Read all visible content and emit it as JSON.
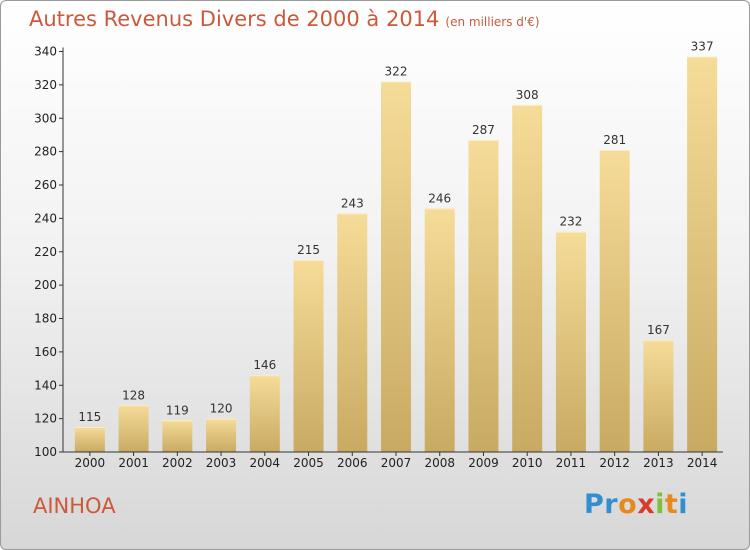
{
  "header": {
    "title": "Autres Revenus Divers de 2000 à 2014",
    "subtitle": "(en milliers d'€)"
  },
  "footer": {
    "commune": "AINHOA",
    "logo_text": "Proxiti"
  },
  "colors": {
    "title": "#cc5a3a",
    "bar_light": "#f5dc98",
    "bar_dark": "#c9aa62"
  },
  "chart_data": {
    "type": "bar",
    "title": "Autres Revenus Divers de 2000 à 2014",
    "subtitle": "(en milliers d'€)",
    "xlabel": "",
    "ylabel": "",
    "categories": [
      "2000",
      "2001",
      "2002",
      "2003",
      "2004",
      "2005",
      "2006",
      "2007",
      "2008",
      "2009",
      "2010",
      "2011",
      "2012",
      "2013",
      "2014"
    ],
    "values": [
      115,
      128,
      119,
      120,
      146,
      215,
      243,
      322,
      246,
      287,
      308,
      232,
      281,
      167,
      337
    ],
    "ylim": [
      100,
      340
    ],
    "yticks": [
      100,
      120,
      140,
      160,
      180,
      200,
      220,
      240,
      260,
      280,
      300,
      320,
      340
    ],
    "grid": false,
    "legend": "none",
    "data_labels": true
  }
}
